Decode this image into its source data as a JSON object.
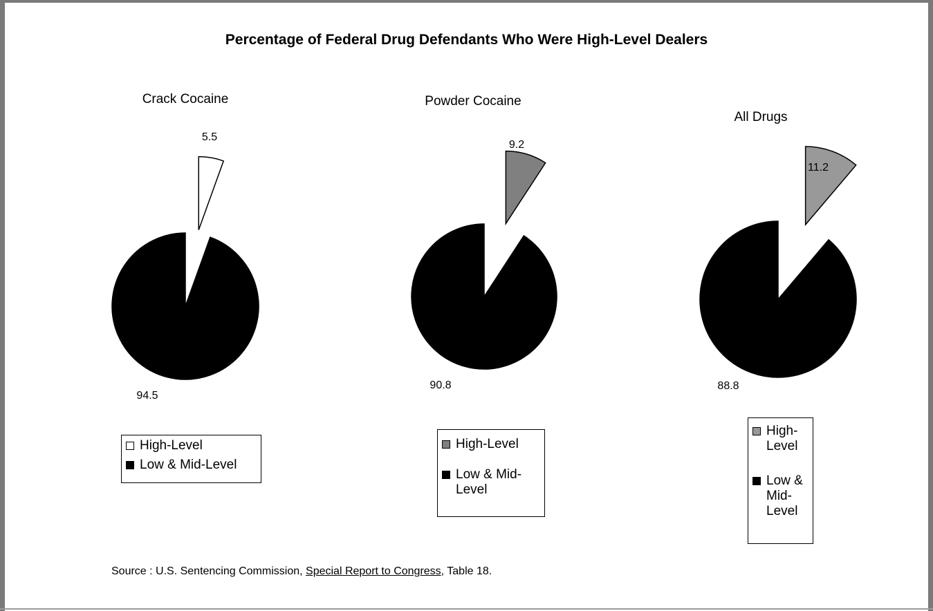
{
  "title": "Percentage of Federal Drug Defendants Who Were High-Level Dealers",
  "source": {
    "prefix": "Source : U.S. Sentencing Commission, ",
    "report": "Special Report to Congress",
    "suffix": ", Table 18."
  },
  "chart_data": [
    {
      "type": "pie",
      "title": "Crack Cocaine",
      "categories": [
        "High-Level",
        "Low & Mid-Level"
      ],
      "values": [
        5.5,
        94.5
      ],
      "colors": [
        "#ffffff",
        "#000000"
      ],
      "legend": [
        "High-Level",
        "Low & Mid-Level"
      ]
    },
    {
      "type": "pie",
      "title": "Powder Cocaine",
      "categories": [
        "High-Level",
        "Low & Mid-Level"
      ],
      "values": [
        9.2,
        90.8
      ],
      "colors": [
        "#808080",
        "#000000"
      ],
      "legend": [
        "High-Level",
        "Low & Mid-Level"
      ]
    },
    {
      "type": "pie",
      "title": "All Drugs",
      "categories": [
        "High-Level",
        "Low & Mid-Level"
      ],
      "values": [
        11.2,
        88.8
      ],
      "colors": [
        "#999999",
        "#000000"
      ],
      "legend": [
        "High-Level",
        "Low & Mid-Level"
      ]
    }
  ]
}
